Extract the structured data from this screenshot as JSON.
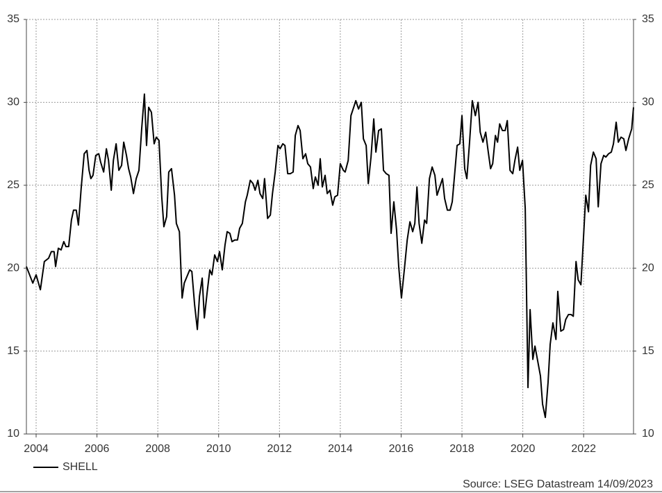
{
  "chart_data": {
    "type": "line",
    "source": "Source: LSEG Datastream 14/09/2023",
    "xlim": [
      2003.68,
      2023.64
    ],
    "xticks": [
      2004,
      2006,
      2008,
      2010,
      2012,
      2014,
      2016,
      2018,
      2020,
      2022
    ],
    "ylim": [
      10,
      35
    ],
    "yticks": [
      10,
      15,
      20,
      25,
      30,
      35
    ],
    "grid": true,
    "x": [
      2003.68,
      2003.89,
      2004.0,
      2004.14,
      2004.27,
      2004.41,
      2004.5,
      2004.59,
      2004.64,
      2004.73,
      2004.82,
      2004.91,
      2004.98,
      2005.07,
      2005.16,
      2005.23,
      2005.32,
      2005.39,
      2005.48,
      2005.58,
      2005.67,
      2005.74,
      2005.8,
      2005.87,
      2005.96,
      2006.06,
      2006.12,
      2006.22,
      2006.31,
      2006.38,
      2006.47,
      2006.54,
      2006.63,
      2006.72,
      2006.81,
      2006.88,
      2006.97,
      2007.04,
      2007.11,
      2007.2,
      2007.29,
      2007.38,
      2007.47,
      2007.56,
      2007.63,
      2007.7,
      2007.79,
      2007.88,
      2007.95,
      2008.04,
      2008.13,
      2008.2,
      2008.29,
      2008.36,
      2008.45,
      2008.55,
      2008.61,
      2008.71,
      2008.8,
      2008.87,
      2008.96,
      2009.05,
      2009.12,
      2009.21,
      2009.3,
      2009.37,
      2009.46,
      2009.53,
      2009.62,
      2009.71,
      2009.78,
      2009.87,
      2009.96,
      2010.03,
      2010.12,
      2010.21,
      2010.28,
      2010.37,
      2010.44,
      2010.53,
      2010.62,
      2010.69,
      2010.78,
      2010.88,
      2010.94,
      2011.04,
      2011.13,
      2011.2,
      2011.29,
      2011.36,
      2011.45,
      2011.51,
      2011.61,
      2011.7,
      2011.77,
      2011.86,
      2011.95,
      2012.02,
      2012.11,
      2012.18,
      2012.27,
      2012.36,
      2012.45,
      2012.52,
      2012.61,
      2012.68,
      2012.77,
      2012.86,
      2012.93,
      2013.02,
      2013.11,
      2013.18,
      2013.27,
      2013.34,
      2013.41,
      2013.5,
      2013.57,
      2013.66,
      2013.75,
      2013.82,
      2013.91,
      2014.0,
      2014.1,
      2014.16,
      2014.26,
      2014.35,
      2014.44,
      2014.51,
      2014.6,
      2014.69,
      2014.76,
      2014.85,
      2014.92,
      2015.01,
      2015.1,
      2015.17,
      2015.26,
      2015.35,
      2015.42,
      2015.51,
      2015.6,
      2015.67,
      2015.76,
      2015.85,
      2015.92,
      2016.01,
      2016.11,
      2016.2,
      2016.29,
      2016.38,
      2016.45,
      2016.52,
      2016.59,
      2016.68,
      2016.77,
      2016.84,
      2016.93,
      2017.02,
      2017.11,
      2017.18,
      2017.27,
      2017.36,
      2017.43,
      2017.52,
      2017.61,
      2017.68,
      2017.77,
      2017.84,
      2017.93,
      2018.0,
      2018.09,
      2018.16,
      2018.25,
      2018.34,
      2018.44,
      2018.53,
      2018.6,
      2018.69,
      2018.78,
      2018.85,
      2018.94,
      2019.01,
      2019.1,
      2019.17,
      2019.24,
      2019.33,
      2019.42,
      2019.49,
      2019.58,
      2019.67,
      2019.74,
      2019.83,
      2019.9,
      2019.99,
      2020.08,
      2020.17,
      2020.24,
      2020.33,
      2020.4,
      2020.49,
      2020.58,
      2020.65,
      2020.74,
      2020.83,
      2020.9,
      2020.99,
      2021.09,
      2021.15,
      2021.25,
      2021.34,
      2021.41,
      2021.5,
      2021.59,
      2021.66,
      2021.75,
      2021.82,
      2021.91,
      2022.0,
      2022.07,
      2022.16,
      2022.23,
      2022.32,
      2022.41,
      2022.48,
      2022.57,
      2022.66,
      2022.73,
      2022.82,
      2022.91,
      2022.98,
      2023.07,
      2023.14,
      2023.23,
      2023.32,
      2023.39,
      2023.48,
      2023.58,
      2023.64
    ],
    "series": [
      {
        "name": "SHELL",
        "color": "#000000",
        "values": [
          20.1,
          19.1,
          19.6,
          18.7,
          20.4,
          20.6,
          21.0,
          21.0,
          20.1,
          21.2,
          21.1,
          21.6,
          21.3,
          21.3,
          22.9,
          23.5,
          23.5,
          22.6,
          24.8,
          26.9,
          27.1,
          25.9,
          25.4,
          25.6,
          26.8,
          26.9,
          26.4,
          25.8,
          27.2,
          26.5,
          24.7,
          26.5,
          27.5,
          25.9,
          26.2,
          27.6,
          26.8,
          26.0,
          25.5,
          24.5,
          25.4,
          25.9,
          28.4,
          30.5,
          27.4,
          29.7,
          29.4,
          27.5,
          27.9,
          27.7,
          24.3,
          22.5,
          23.1,
          25.8,
          26.0,
          24.4,
          22.7,
          22.2,
          18.2,
          19.1,
          19.5,
          19.9,
          19.8,
          17.8,
          16.3,
          18.3,
          19.4,
          17.0,
          18.5,
          19.9,
          19.6,
          20.8,
          20.4,
          21.0,
          19.9,
          21.4,
          22.2,
          22.1,
          21.6,
          21.7,
          21.7,
          22.4,
          22.7,
          24.0,
          24.4,
          25.3,
          25.1,
          24.7,
          25.3,
          24.5,
          24.2,
          25.4,
          23.0,
          23.2,
          24.5,
          25.8,
          27.4,
          27.2,
          27.5,
          27.4,
          25.7,
          25.7,
          25.8,
          28.0,
          28.6,
          28.3,
          26.6,
          26.9,
          26.3,
          26.1,
          24.8,
          25.5,
          25.0,
          26.6,
          24.9,
          25.6,
          24.5,
          24.7,
          23.8,
          24.3,
          24.4,
          26.3,
          25.9,
          25.8,
          26.5,
          29.2,
          29.7,
          30.1,
          29.6,
          30.0,
          27.8,
          27.4,
          25.1,
          26.7,
          29.0,
          27.0,
          28.3,
          28.4,
          25.9,
          25.7,
          25.6,
          22.1,
          24.0,
          22.3,
          20.1,
          18.2,
          20.0,
          21.7,
          22.8,
          22.2,
          22.7,
          24.9,
          22.7,
          21.5,
          22.9,
          22.7,
          25.4,
          26.1,
          25.6,
          24.4,
          24.9,
          25.4,
          24.2,
          23.5,
          23.5,
          24.0,
          25.9,
          27.4,
          27.5,
          29.2,
          26.0,
          25.4,
          27.6,
          30.1,
          29.2,
          30.0,
          28.2,
          27.6,
          28.2,
          27.2,
          26.0,
          26.3,
          28.0,
          27.6,
          28.7,
          28.3,
          28.3,
          28.9,
          25.9,
          25.7,
          26.5,
          27.3,
          25.9,
          26.5,
          23.6,
          12.8,
          17.5,
          14.5,
          15.3,
          14.4,
          13.5,
          11.8,
          11.0,
          13.1,
          15.4,
          16.7,
          15.7,
          18.6,
          16.2,
          16.3,
          16.9,
          17.2,
          17.2,
          17.1,
          20.4,
          19.3,
          19.0,
          22.0,
          24.4,
          23.4,
          26.2,
          27.0,
          26.6,
          23.7,
          26.3,
          26.8,
          26.7,
          26.9,
          27.0,
          27.5,
          28.8,
          27.6,
          27.9,
          27.8,
          27.1,
          27.8,
          28.4,
          29.7
        ]
      }
    ]
  }
}
